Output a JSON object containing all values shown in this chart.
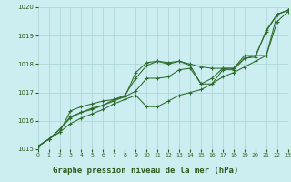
{
  "title": "Graphe pression niveau de la mer (hPa)",
  "x": [
    0,
    1,
    2,
    3,
    4,
    5,
    6,
    7,
    8,
    9,
    10,
    11,
    12,
    13,
    14,
    15,
    16,
    17,
    18,
    19,
    20,
    21,
    22,
    23
  ],
  "line1": [
    1015.1,
    1015.35,
    1015.6,
    1016.35,
    1016.5,
    1016.6,
    1016.7,
    1016.75,
    1016.85,
    1017.05,
    1017.5,
    1017.5,
    1017.55,
    1017.8,
    1017.85,
    1017.3,
    1017.5,
    1017.85,
    1017.85,
    1018.2,
    1018.3,
    1018.3,
    1019.75,
    1019.9
  ],
  "line2": [
    1015.1,
    1015.35,
    1015.6,
    1015.9,
    1016.1,
    1016.25,
    1016.4,
    1016.6,
    1016.75,
    1016.9,
    1016.5,
    1016.5,
    1016.7,
    1016.9,
    1017.0,
    1017.1,
    1017.3,
    1017.55,
    1017.7,
    1017.9,
    1018.1,
    1018.3,
    1019.5,
    1019.85
  ],
  "line3": [
    1015.1,
    1015.35,
    1015.7,
    1016.1,
    1016.3,
    1016.4,
    1016.55,
    1016.7,
    1016.85,
    1017.7,
    1018.05,
    1018.1,
    1018.0,
    1018.1,
    1018.0,
    1017.9,
    1017.85,
    1017.85,
    1017.85,
    1018.3,
    1018.3,
    1019.15,
    1019.75,
    1019.9
  ],
  "line4": [
    1015.1,
    1015.35,
    1015.7,
    1016.15,
    1016.3,
    1016.45,
    1016.55,
    1016.75,
    1016.9,
    1017.5,
    1017.95,
    1018.1,
    1018.05,
    1018.1,
    1017.95,
    1017.3,
    1017.3,
    1017.8,
    1017.8,
    1018.2,
    1018.25,
    1019.2,
    1019.75,
    1019.9
  ],
  "ylim": [
    1015,
    1020
  ],
  "yticks": [
    1015,
    1016,
    1017,
    1018,
    1019,
    1020
  ],
  "xlim": [
    0,
    23
  ],
  "xticks": [
    0,
    1,
    2,
    3,
    4,
    5,
    6,
    7,
    8,
    9,
    10,
    11,
    12,
    13,
    14,
    15,
    16,
    17,
    18,
    19,
    20,
    21,
    22,
    23
  ],
  "line_color": "#2d6a2d",
  "bg_color": "#cceef0",
  "grid_color": "#b0d8d8",
  "title_color": "#2d5a1b",
  "tick_color": "#2d5a1b"
}
